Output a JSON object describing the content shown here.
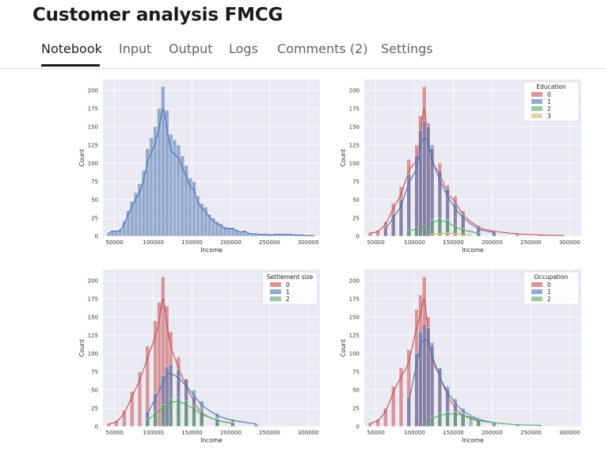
{
  "page": {
    "title": "Customer analysis FMCG"
  },
  "tabs": [
    {
      "label": "Notebook",
      "active": true
    },
    {
      "label": "Input"
    },
    {
      "label": "Output"
    },
    {
      "label": "Logs"
    },
    {
      "label": "Comments (2)"
    },
    {
      "label": "Settings"
    }
  ],
  "chart_data": [
    {
      "type": "bar",
      "xlabel": "Income",
      "ylabel": "Count",
      "xlim": [
        35000,
        315000
      ],
      "ylim": [
        0,
        215
      ],
      "xticks": [
        50000,
        100000,
        150000,
        200000,
        250000,
        300000
      ],
      "yticks": [
        0,
        25,
        50,
        75,
        100,
        125,
        150,
        175,
        200
      ],
      "bin_width": 5000,
      "series": [
        {
          "color": "#4c72b0",
          "values": [
            [
              42500,
              5
            ],
            [
              47500,
              8
            ],
            [
              52500,
              8
            ],
            [
              57500,
              10
            ],
            [
              62500,
              21
            ],
            [
              67500,
              35
            ],
            [
              72500,
              48
            ],
            [
              77500,
              60
            ],
            [
              82500,
              72
            ],
            [
              87500,
              90
            ],
            [
              92500,
              120
            ],
            [
              97500,
              135
            ],
            [
              102500,
              150
            ],
            [
              107500,
              175
            ],
            [
              112500,
              205
            ],
            [
              117500,
              173
            ],
            [
              122500,
              140
            ],
            [
              127500,
              132
            ],
            [
              132500,
              125
            ],
            [
              137500,
              110
            ],
            [
              142500,
              97
            ],
            [
              147500,
              80
            ],
            [
              152500,
              75
            ],
            [
              157500,
              55
            ],
            [
              162500,
              45
            ],
            [
              167500,
              40
            ],
            [
              172500,
              30
            ],
            [
              177500,
              25
            ],
            [
              182500,
              20
            ],
            [
              187500,
              17
            ],
            [
              192500,
              13
            ],
            [
              197500,
              12
            ],
            [
              202500,
              12
            ],
            [
              207500,
              9
            ],
            [
              212500,
              7
            ],
            [
              217500,
              8
            ],
            [
              222500,
              5
            ],
            [
              227500,
              4
            ],
            [
              232500,
              4
            ],
            [
              237500,
              3
            ],
            [
              242500,
              3
            ],
            [
              247500,
              3
            ],
            [
              252500,
              2
            ],
            [
              257500,
              3
            ],
            [
              262500,
              3
            ],
            [
              267500,
              3
            ],
            [
              272500,
              3
            ],
            [
              277500,
              3
            ],
            [
              282500,
              2
            ],
            [
              287500,
              2
            ],
            [
              292500,
              2
            ],
            [
              297500,
              1
            ],
            [
              302500,
              1
            ],
            [
              307500,
              1
            ]
          ]
        }
      ]
    },
    {
      "type": "bar",
      "xlabel": "Income",
      "ylabel": "Count",
      "xlim": [
        35000,
        315000
      ],
      "ylim": [
        0,
        215
      ],
      "xticks": [
        50000,
        100000,
        150000,
        200000,
        250000,
        300000
      ],
      "yticks": [
        0,
        25,
        50,
        75,
        100,
        125,
        150,
        175,
        200
      ],
      "legend": {
        "title": "Education",
        "position": "top-right",
        "entries": [
          "0",
          "1",
          "2",
          "3"
        ]
      },
      "series": [
        {
          "name": "0",
          "color": "#c44e52",
          "values": [
            [
              42500,
              5
            ],
            [
              52500,
              8
            ],
            [
              62500,
              20
            ],
            [
              72500,
              45
            ],
            [
              82500,
              68
            ],
            [
              92500,
              105
            ],
            [
              102500,
              125
            ],
            [
              107500,
              165
            ],
            [
              112500,
              205
            ],
            [
              117500,
              155
            ],
            [
              122500,
              120
            ],
            [
              132500,
              100
            ],
            [
              142500,
              70
            ],
            [
              152500,
              55
            ],
            [
              162500,
              35
            ],
            [
              182500,
              15
            ],
            [
              202500,
              8
            ],
            [
              232500,
              4
            ],
            [
              262500,
              2
            ],
            [
              292500,
              1
            ]
          ]
        },
        {
          "name": "1",
          "color": "#4c72b0",
          "values": [
            [
              62500,
              12
            ],
            [
              72500,
              30
            ],
            [
              82500,
              50
            ],
            [
              92500,
              85
            ],
            [
              102500,
              110
            ],
            [
              107500,
              145
            ],
            [
              112500,
              158
            ],
            [
              117500,
              150
            ],
            [
              122500,
              125
            ],
            [
              132500,
              90
            ],
            [
              142500,
              65
            ],
            [
              152500,
              45
            ],
            [
              162500,
              30
            ],
            [
              182500,
              12
            ],
            [
              202500,
              6
            ]
          ]
        },
        {
          "name": "2",
          "color": "#55a868",
          "values": [
            [
              92500,
              8
            ],
            [
              102500,
              12
            ],
            [
              112500,
              15
            ],
            [
              122500,
              22
            ],
            [
              132500,
              25
            ],
            [
              142500,
              22
            ],
            [
              152500,
              15
            ],
            [
              162500,
              10
            ],
            [
              182500,
              5
            ]
          ]
        },
        {
          "name": "3",
          "color": "#ccb974",
          "values": [
            [
              122500,
              3
            ],
            [
              132500,
              4
            ],
            [
              142500,
              5
            ],
            [
              152500,
              4
            ],
            [
              162500,
              3
            ],
            [
              172500,
              2
            ]
          ]
        }
      ]
    },
    {
      "type": "bar",
      "xlabel": "Income",
      "ylabel": "Count",
      "xlim": [
        35000,
        315000
      ],
      "ylim": [
        0,
        215
      ],
      "xticks": [
        50000,
        100000,
        150000,
        200000,
        250000,
        300000
      ],
      "yticks": [
        0,
        25,
        50,
        75,
        100,
        125,
        150,
        175,
        200
      ],
      "legend": {
        "title": "Settlement size",
        "position": "top-right",
        "entries": [
          "0",
          "1",
          "2"
        ]
      },
      "series": [
        {
          "name": "0",
          "color": "#c44e52",
          "values": [
            [
              42500,
              4
            ],
            [
              52500,
              8
            ],
            [
              62500,
              22
            ],
            [
              72500,
              48
            ],
            [
              82500,
              75
            ],
            [
              92500,
              110
            ],
            [
              102500,
              145
            ],
            [
              107500,
              170
            ],
            [
              112500,
              205
            ],
            [
              117500,
              165
            ],
            [
              122500,
              130
            ],
            [
              132500,
              95
            ],
            [
              142500,
              65
            ],
            [
              152500,
              40
            ],
            [
              162500,
              22
            ],
            [
              182500,
              10
            ],
            [
              202500,
              5
            ]
          ]
        },
        {
          "name": "1",
          "color": "#4c72b0",
          "values": [
            [
              92500,
              20
            ],
            [
              102500,
              45
            ],
            [
              112500,
              70
            ],
            [
              117500,
              82
            ],
            [
              122500,
              85
            ],
            [
              132500,
              78
            ],
            [
              142500,
              65
            ],
            [
              152500,
              50
            ],
            [
              162500,
              35
            ],
            [
              182500,
              18
            ],
            [
              202500,
              10
            ],
            [
              232500,
              4
            ]
          ]
        },
        {
          "name": "2",
          "color": "#55a868",
          "values": [
            [
              92500,
              10
            ],
            [
              102500,
              20
            ],
            [
              112500,
              30
            ],
            [
              122500,
              38
            ],
            [
              132500,
              40
            ],
            [
              142500,
              35
            ],
            [
              152500,
              28
            ],
            [
              162500,
              20
            ],
            [
              182500,
              10
            ],
            [
              202500,
              5
            ]
          ]
        }
      ]
    },
    {
      "type": "bar",
      "xlabel": "Income",
      "ylabel": "Count",
      "xlim": [
        35000,
        315000
      ],
      "ylim": [
        0,
        215
      ],
      "xticks": [
        50000,
        100000,
        150000,
        200000,
        250000,
        300000
      ],
      "yticks": [
        0,
        25,
        50,
        75,
        100,
        125,
        150,
        175,
        200
      ],
      "legend": {
        "title": "Occupation",
        "position": "top-right",
        "entries": [
          "0",
          "1",
          "2"
        ]
      },
      "series": [
        {
          "name": "0",
          "color": "#c44e52",
          "values": [
            [
              42500,
              5
            ],
            [
              52500,
              10
            ],
            [
              62500,
              25
            ],
            [
              72500,
              55
            ],
            [
              82500,
              80
            ],
            [
              92500,
              105
            ],
            [
              102500,
              160
            ],
            [
              107500,
              180
            ],
            [
              112500,
              205
            ],
            [
              117500,
              150
            ],
            [
              122500,
              110
            ],
            [
              132500,
              80
            ],
            [
              142500,
              50
            ],
            [
              152500,
              30
            ],
            [
              162500,
              18
            ],
            [
              182500,
              8
            ]
          ]
        },
        {
          "name": "1",
          "color": "#4c72b0",
          "values": [
            [
              92500,
              40
            ],
            [
              102500,
              100
            ],
            [
              107500,
              130
            ],
            [
              112500,
              140
            ],
            [
              117500,
              135
            ],
            [
              122500,
              115
            ],
            [
              132500,
              80
            ],
            [
              142500,
              55
            ],
            [
              152500,
              38
            ],
            [
              162500,
              25
            ],
            [
              182500,
              12
            ],
            [
              202500,
              6
            ]
          ]
        },
        {
          "name": "2",
          "color": "#55a868",
          "values": [
            [
              112500,
              5
            ],
            [
              122500,
              12
            ],
            [
              132500,
              18
            ],
            [
              142500,
              20
            ],
            [
              152500,
              20
            ],
            [
              162500,
              18
            ],
            [
              172500,
              15
            ],
            [
              182500,
              10
            ],
            [
              202500,
              6
            ],
            [
              232500,
              3
            ],
            [
              262500,
              2
            ]
          ]
        }
      ]
    }
  ]
}
